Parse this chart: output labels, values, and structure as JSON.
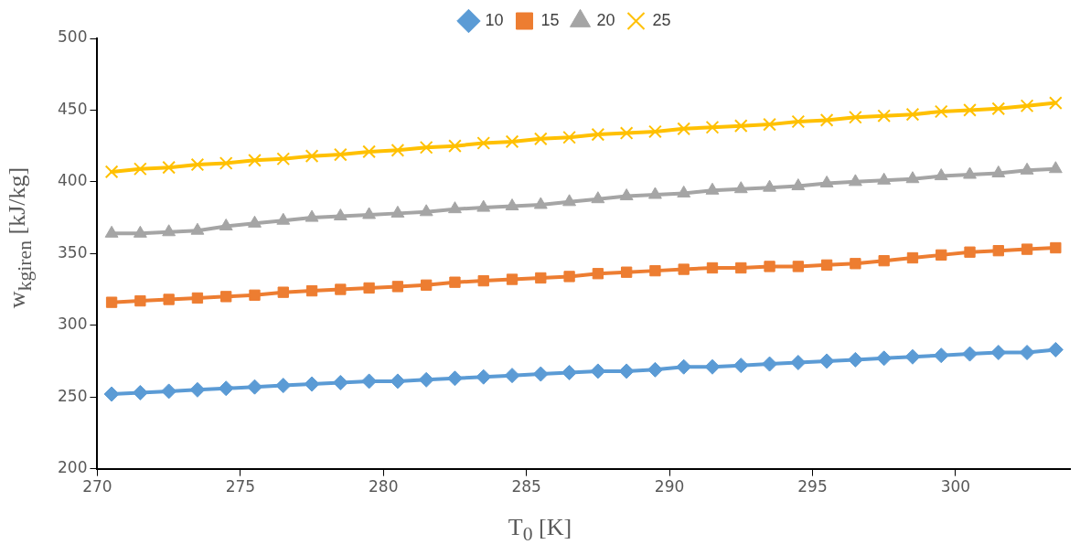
{
  "chart_data": {
    "type": "line",
    "xlabel": "T$_{0}$ [K]",
    "ylabel": "w$_{kgiren}$ [kJ/kg]",
    "x": [
      270.5,
      271.5,
      272.5,
      273.5,
      274.5,
      275.5,
      276.5,
      277.5,
      278.5,
      279.5,
      280.5,
      281.5,
      282.5,
      283.5,
      284.5,
      285.5,
      286.5,
      287.5,
      288.5,
      289.5,
      290.5,
      291.5,
      292.5,
      293.5,
      294.5,
      295.5,
      296.5,
      297.5,
      298.5,
      299.5,
      300.5,
      301.5,
      302.5,
      303.5
    ],
    "xlim": [
      270,
      304
    ],
    "xticks": [
      270,
      275,
      280,
      285,
      290,
      295,
      300
    ],
    "ylim": [
      200,
      500
    ],
    "yticks": [
      200,
      250,
      300,
      350,
      400,
      450,
      500
    ],
    "grid": false,
    "legend": "top",
    "line_style": "solid",
    "series": [
      {
        "name": "10",
        "color": "#5b9bd5",
        "marker": "diamond",
        "values": [
          252,
          253,
          254,
          255,
          256,
          257,
          258,
          259,
          260,
          261,
          261,
          262,
          263,
          264,
          265,
          266,
          267,
          268,
          268,
          269,
          271,
          271,
          272,
          273,
          274,
          275,
          276,
          277,
          278,
          279,
          280,
          281,
          281,
          283
        ]
      },
      {
        "name": "15",
        "color": "#ed7d31",
        "marker": "square",
        "values": [
          316,
          317,
          318,
          319,
          320,
          321,
          323,
          324,
          325,
          326,
          327,
          328,
          330,
          331,
          332,
          333,
          334,
          336,
          337,
          338,
          339,
          340,
          340,
          341,
          341,
          342,
          343,
          345,
          347,
          349,
          351,
          352,
          353,
          354
        ]
      },
      {
        "name": "20",
        "color": "#a5a5a5",
        "marker": "triangle",
        "values": [
          364,
          364,
          365,
          366,
          369,
          371,
          373,
          375,
          376,
          377,
          378,
          379,
          381,
          382,
          383,
          384,
          386,
          388,
          390,
          391,
          392,
          394,
          395,
          396,
          397,
          399,
          400,
          401,
          402,
          404,
          405,
          406,
          408,
          409
        ]
      },
      {
        "name": "25",
        "color": "#ffc000",
        "marker": "cross",
        "values": [
          407,
          409,
          410,
          412,
          413,
          415,
          416,
          418,
          419,
          421,
          422,
          424,
          425,
          427,
          428,
          430,
          431,
          433,
          434,
          435,
          437,
          438,
          439,
          440,
          442,
          443,
          445,
          446,
          447,
          449,
          450,
          451,
          453,
          455
        ]
      }
    ]
  }
}
